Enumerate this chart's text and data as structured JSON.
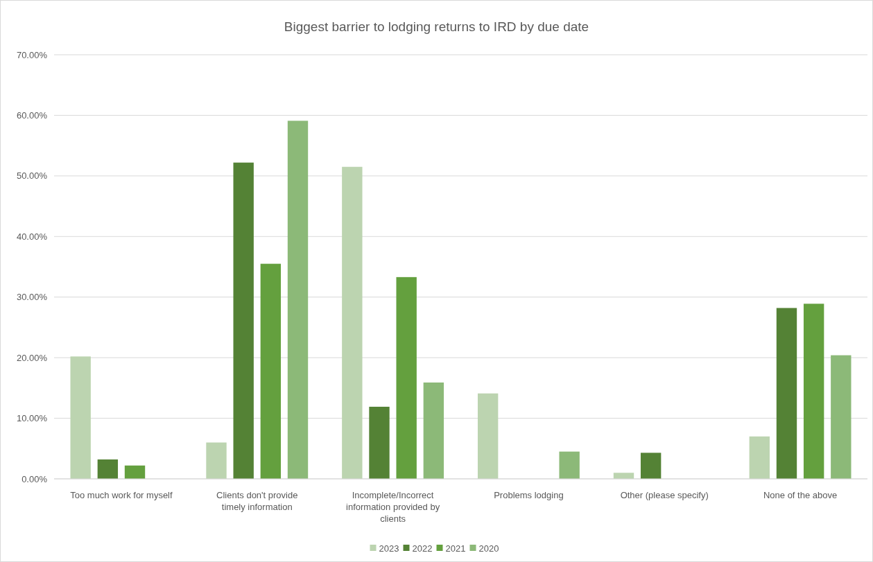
{
  "chart_data": {
    "type": "bar",
    "title": "Biggest barrier to lodging returns to IRD by due date",
    "categories": [
      "Too much work for myself",
      "Clients don't provide timely information",
      "Incomplete/Incorrect information provided by clients",
      "Problems lodging",
      "Other (please specify)",
      "None of the above"
    ],
    "series": [
      {
        "name": "2023",
        "color": "#bcd4b0",
        "values": [
          20.2,
          6.0,
          51.5,
          14.1,
          1.0,
          7.0
        ]
      },
      {
        "name": "2022",
        "color": "#548235",
        "values": [
          3.2,
          52.2,
          11.9,
          0,
          4.3,
          28.2
        ]
      },
      {
        "name": "2021",
        "color": "#64a03e",
        "values": [
          2.2,
          35.5,
          33.3,
          0,
          0,
          28.9
        ]
      },
      {
        "name": "2020",
        "color": "#8cb978",
        "values": [
          0,
          59.1,
          15.9,
          4.5,
          0,
          20.4
        ]
      }
    ],
    "ylim": [
      0,
      70
    ],
    "yticks": [
      {
        "value": 0,
        "label": "0.00%"
      },
      {
        "value": 10,
        "label": "10.00%"
      },
      {
        "value": 20,
        "label": "20.00%"
      },
      {
        "value": 30,
        "label": "30.00%"
      },
      {
        "value": 40,
        "label": "40.00%"
      },
      {
        "value": 50,
        "label": "50.00%"
      },
      {
        "value": 60,
        "label": "60.00%"
      },
      {
        "value": 70,
        "label": "70.00%"
      }
    ],
    "grid": "y",
    "legend": "bottom"
  }
}
